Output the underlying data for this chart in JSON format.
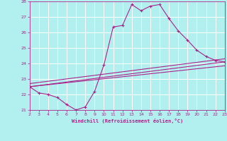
{
  "xlabel": "Windchill (Refroidissement éolien,°C)",
  "xlim": [
    2,
    23
  ],
  "ylim": [
    21,
    28
  ],
  "xticks": [
    2,
    3,
    4,
    5,
    6,
    7,
    8,
    9,
    10,
    11,
    12,
    13,
    14,
    15,
    16,
    17,
    18,
    19,
    20,
    21,
    22,
    23
  ],
  "yticks": [
    21,
    22,
    23,
    24,
    25,
    26,
    27,
    28
  ],
  "bg_color": "#b2f0f0",
  "grid_color": "#ffffff",
  "line_color": "#aa2288",
  "line1_x": [
    2,
    3,
    4,
    5,
    6,
    7,
    8,
    9,
    10,
    11,
    12,
    13,
    14,
    15,
    16,
    17,
    18,
    19,
    20,
    21,
    22,
    23
  ],
  "line1_y": [
    22.5,
    22.1,
    22.0,
    21.8,
    21.35,
    21.0,
    21.2,
    22.2,
    23.9,
    26.35,
    26.45,
    27.8,
    27.4,
    27.7,
    27.8,
    26.9,
    26.1,
    25.5,
    24.85,
    24.45,
    24.2,
    24.1
  ],
  "line2_x": [
    2,
    23
  ],
  "line2_y": [
    22.5,
    24.1
  ],
  "line3_x": [
    2,
    23
  ],
  "line3_y": [
    22.5,
    23.85
  ],
  "line4_x": [
    2,
    23
  ],
  "line4_y": [
    22.7,
    24.3
  ]
}
